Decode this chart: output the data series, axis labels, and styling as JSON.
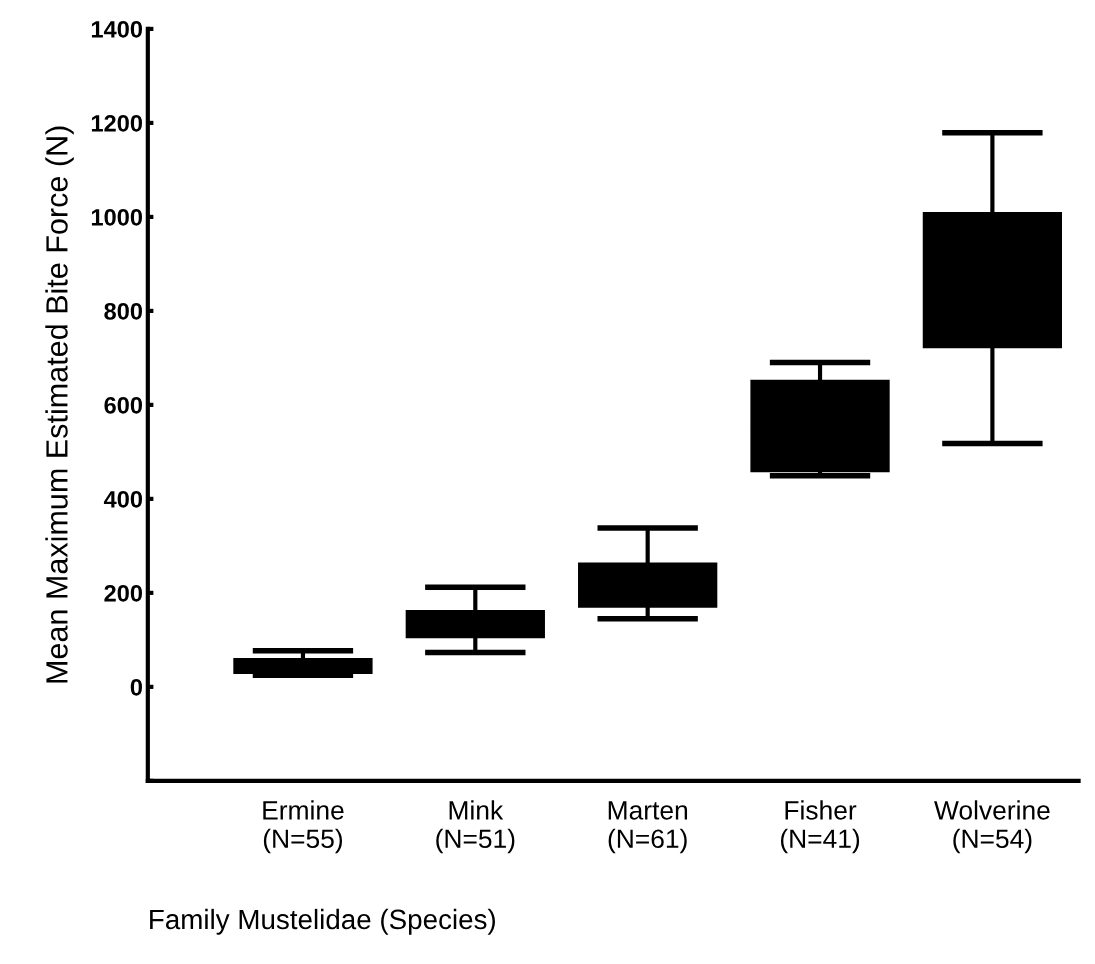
{
  "chart_data": {
    "type": "box",
    "xlabel": "Family Mustelidae (Species)",
    "ylabel": "Mean Maximum Estimated Bite Force (N)",
    "categories": [
      "Ermine\n(N=55)",
      "Mink\n(N=51)",
      "Marten\n(N=61)",
      "Fisher\n(N=41)",
      "Wolverine\n(N=54)"
    ],
    "boxes": [
      {
        "low": 25,
        "q1": 29,
        "median": 45,
        "q3": 60,
        "high": 77
      },
      {
        "low": 73,
        "q1": 105,
        "median": 135,
        "q3": 162,
        "high": 212
      },
      {
        "low": 145,
        "q1": 170,
        "median": 215,
        "q3": 263,
        "high": 338
      },
      {
        "low": 449,
        "q1": 458,
        "median": 555,
        "q3": 652,
        "high": 690
      },
      {
        "low": 518,
        "q1": 722,
        "median": 865,
        "q3": 1009,
        "high": 1179
      }
    ],
    "color": "#000000",
    "ylim": [
      -200,
      1400
    ],
    "yticks": [
      {
        "value": -200,
        "label": null
      },
      0,
      200,
      400,
      600,
      800,
      1000,
      1200,
      1400
    ],
    "grid": false
  }
}
